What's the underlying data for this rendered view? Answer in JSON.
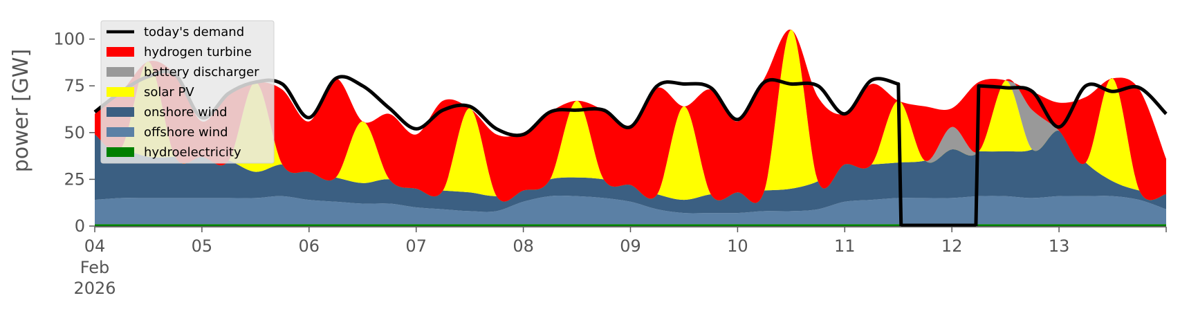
{
  "chart_data": {
    "type": "area",
    "ylabel": "power [GW]",
    "ylim": [
      0,
      115
    ],
    "yticks": [
      0,
      25,
      50,
      75,
      100
    ],
    "xlim": [
      "2026-02-04T00:00",
      "2026-02-14T00:00"
    ],
    "xticks": [
      {
        "date": "2026-02-04",
        "label": "04",
        "sub1": "Feb",
        "sub2": "2026"
      },
      {
        "date": "2026-02-05",
        "label": "05"
      },
      {
        "date": "2026-02-06",
        "label": "06"
      },
      {
        "date": "2026-02-07",
        "label": "07"
      },
      {
        "date": "2026-02-08",
        "label": "08"
      },
      {
        "date": "2026-02-09",
        "label": "09"
      },
      {
        "date": "2026-02-10",
        "label": "10"
      },
      {
        "date": "2026-02-11",
        "label": "11"
      },
      {
        "date": "2026-02-12",
        "label": "12"
      },
      {
        "date": "2026-02-13",
        "label": "13"
      }
    ],
    "grid": false,
    "legend_position": "top-left",
    "x": [
      "2026-02-04T00:00",
      "2026-02-04T06:00",
      "2026-02-04T12:00",
      "2026-02-04T18:00",
      "2026-02-05T00:00",
      "2026-02-05T06:00",
      "2026-02-05T12:00",
      "2026-02-05T18:00",
      "2026-02-06T00:00",
      "2026-02-06T06:00",
      "2026-02-06T12:00",
      "2026-02-06T18:00",
      "2026-02-07T00:00",
      "2026-02-07T06:00",
      "2026-02-07T12:00",
      "2026-02-07T18:00",
      "2026-02-08T00:00",
      "2026-02-08T06:00",
      "2026-02-08T12:00",
      "2026-02-08T18:00",
      "2026-02-09T00:00",
      "2026-02-09T06:00",
      "2026-02-09T12:00",
      "2026-02-09T18:00",
      "2026-02-10T00:00",
      "2026-02-10T06:00",
      "2026-02-10T12:00",
      "2026-02-10T18:00",
      "2026-02-11T00:00",
      "2026-02-11T06:00",
      "2026-02-11T12:00",
      "2026-02-11T18:00",
      "2026-02-12T00:00",
      "2026-02-12T06:00",
      "2026-02-12T12:00",
      "2026-02-12T18:00",
      "2026-02-13T00:00",
      "2026-02-13T06:00",
      "2026-02-13T12:00",
      "2026-02-13T18:00",
      "2026-02-14T00:00"
    ],
    "series": [
      {
        "name": "hydroelectricity",
        "color": "#008000",
        "kind": "area",
        "values": [
          1,
          1,
          1,
          1,
          1,
          1,
          1,
          1,
          1,
          1,
          1,
          1,
          1,
          1,
          1,
          1,
          1,
          1,
          1,
          1,
          1,
          1,
          1,
          1,
          1,
          1,
          1,
          1,
          1,
          1,
          1,
          1,
          1,
          1,
          1,
          1,
          1,
          1,
          1,
          1,
          1
        ]
      },
      {
        "name": "offshore wind",
        "color": "#5b80a5",
        "kind": "area",
        "values": [
          13,
          14,
          14,
          14,
          14,
          14,
          14,
          15,
          13,
          12,
          11,
          11,
          9,
          8,
          7,
          7,
          12,
          15,
          15,
          14,
          12,
          8,
          6,
          6,
          6,
          7,
          7,
          8,
          12,
          13,
          14,
          14,
          14,
          15,
          15,
          14,
          15,
          15,
          15,
          13,
          8
        ]
      },
      {
        "name": "onshore wind",
        "color": "#3b5f82",
        "kind": "area",
        "values": [
          35,
          27,
          22,
          22,
          22,
          20,
          14,
          17,
          15,
          13,
          11,
          13,
          10,
          10,
          10,
          8,
          6,
          9,
          10,
          10,
          9,
          8,
          7,
          10,
          11,
          11,
          12,
          15,
          20,
          19,
          19,
          20,
          26,
          24,
          24,
          26,
          35,
          18,
          8,
          5,
          8
        ]
      },
      {
        "name": "solar PV",
        "color": "#ffff00",
        "kind": "area",
        "values": [
          0,
          0,
          51,
          0,
          0,
          0,
          48,
          0,
          0,
          0,
          33,
          0,
          0,
          0,
          45,
          0,
          0,
          0,
          41,
          0,
          0,
          0,
          50,
          0,
          0,
          0,
          85,
          0,
          0,
          0,
          33,
          0,
          0,
          0,
          38,
          0,
          0,
          0,
          55,
          0,
          0
        ]
      },
      {
        "name": "battery discharger",
        "color": "#999999",
        "kind": "area",
        "values": [
          0,
          0,
          0,
          0,
          0,
          0,
          0,
          0,
          0,
          0,
          0,
          0,
          0,
          0,
          0,
          0,
          0,
          0,
          0,
          0,
          0,
          0,
          0,
          0,
          0,
          0,
          0,
          0,
          0,
          0,
          0,
          0,
          12,
          0,
          0,
          21,
          0,
          0,
          0,
          0,
          0
        ]
      },
      {
        "name": "hydrogen turbine",
        "color": "#ff0000",
        "kind": "area",
        "values": [
          11,
          30,
          0,
          44,
          19,
          36,
          0,
          40,
          27,
          53,
          0,
          35,
          29,
          48,
          0,
          33,
          31,
          36,
          0,
          37,
          32,
          57,
          0,
          56,
          38,
          60,
          0,
          45,
          27,
          43,
          0,
          29,
          10,
          37,
          0,
          10,
          15,
          35,
          0,
          54,
          19
        ]
      },
      {
        "name": "today's demand",
        "color": "#000000",
        "kind": "line",
        "values": [
          61,
          72,
          80,
          81,
          58,
          71,
          77,
          76,
          58,
          79,
          75,
          63,
          52,
          62,
          64,
          52,
          49,
          61,
          62,
          62,
          53,
          75,
          76,
          74,
          57,
          77,
          76,
          75,
          60,
          78,
          76,
          null,
          null,
          75,
          74,
          72,
          53,
          75,
          72,
          74,
          60
        ]
      }
    ],
    "legend": [
      "today's demand",
      "hydrogen turbine",
      "battery discharger",
      "solar PV",
      "onshore wind",
      "offshore wind",
      "hydroelectricity"
    ]
  }
}
